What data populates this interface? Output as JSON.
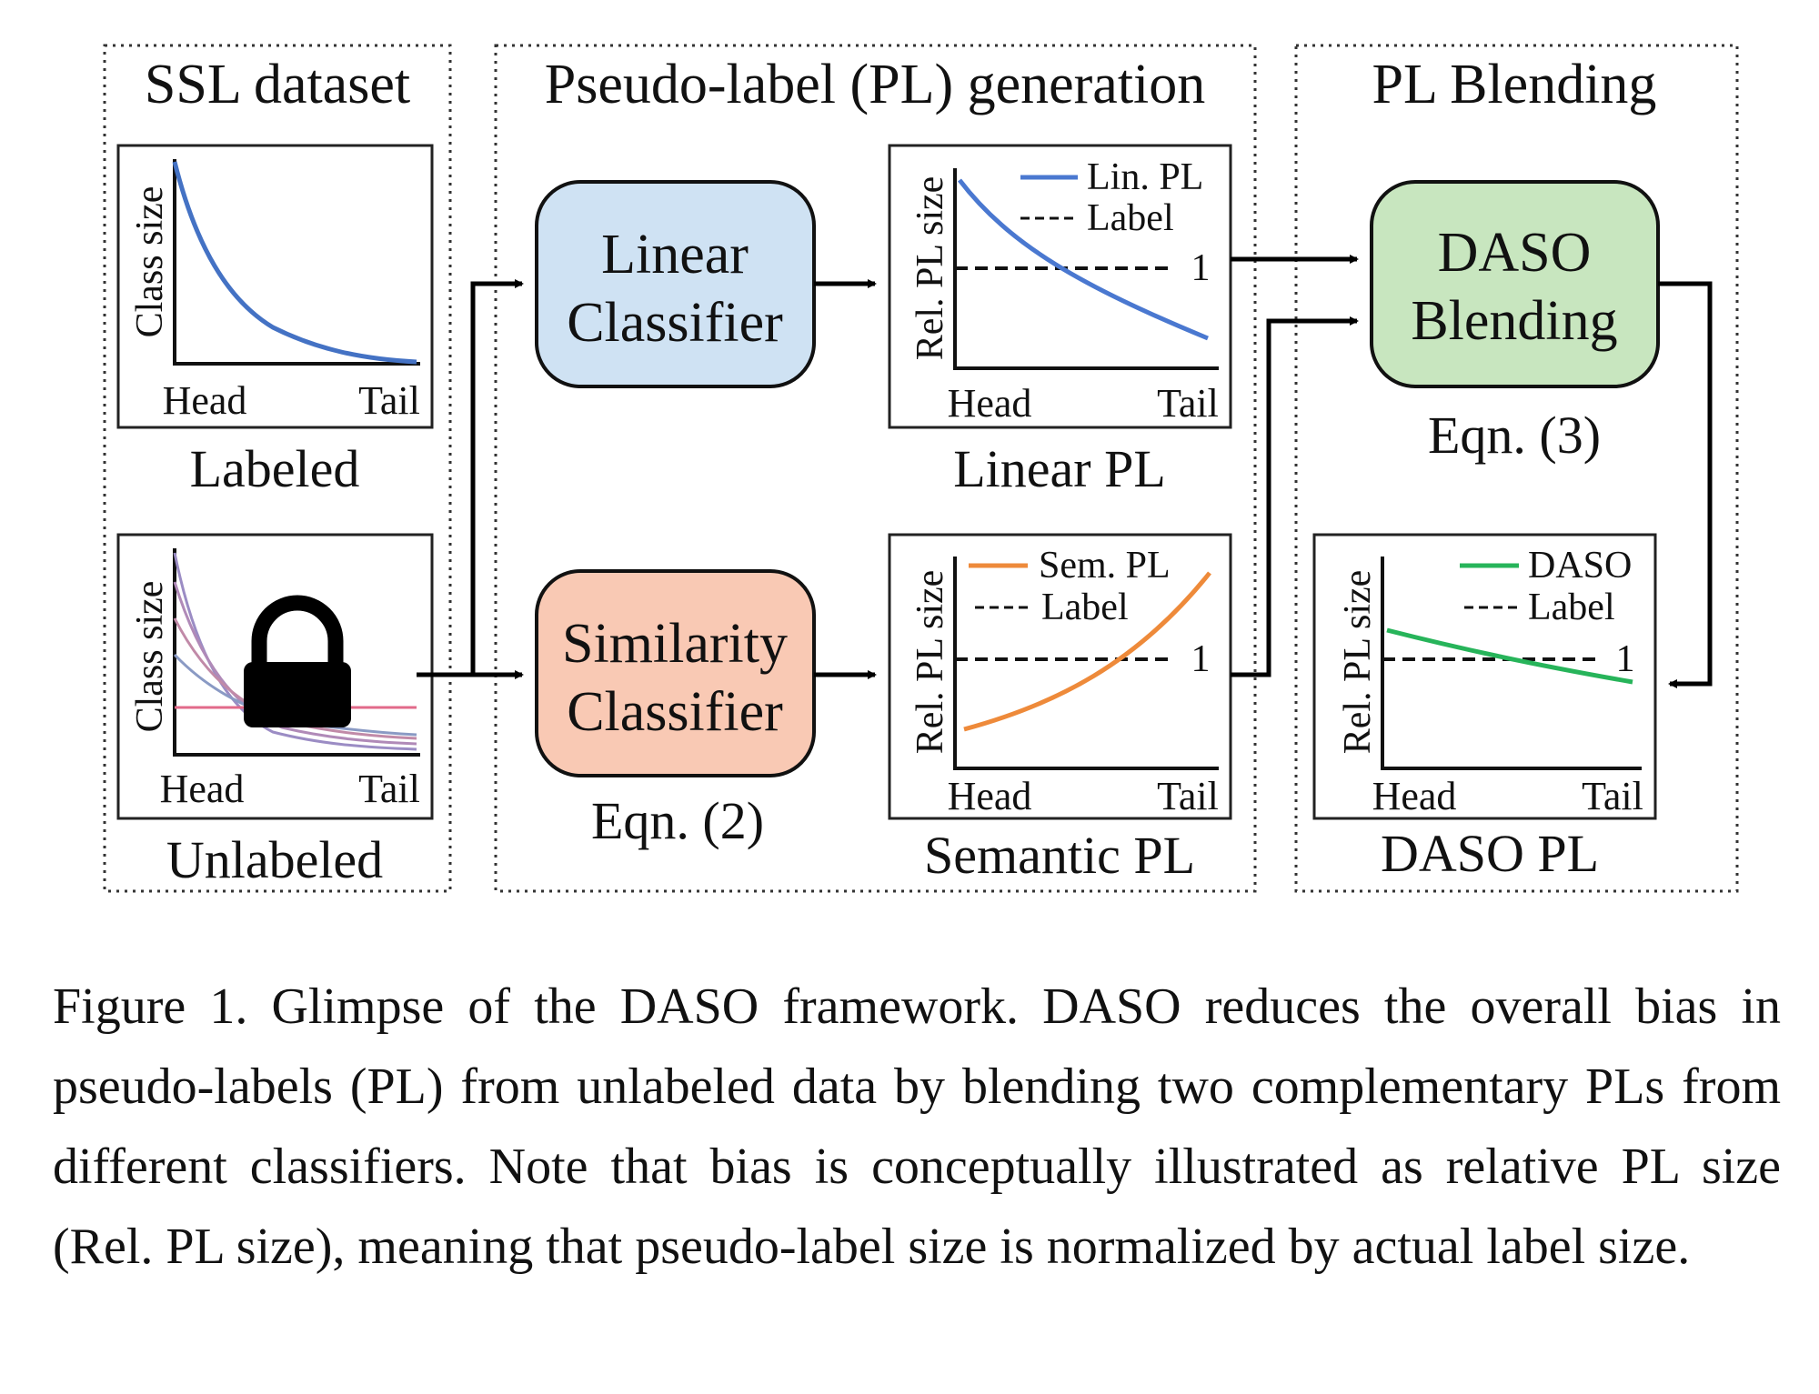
{
  "sections": {
    "ssl_dataset": "SSL dataset",
    "pl_generation": "Pseudo-label (PL) generation",
    "pl_blending": "PL Blending"
  },
  "plots": {
    "labeled": {
      "ylabel": "Class size",
      "x_head": "Head",
      "x_tail": "Tail",
      "caption": "Labeled",
      "color": "#4472c4"
    },
    "unlabeled": {
      "ylabel": "Class size",
      "x_head": "Head",
      "x_tail": "Tail",
      "caption": "Unlabeled",
      "icon": "lock-icon"
    },
    "linear_pl": {
      "ylabel": "Rel. PL size",
      "x_head": "Head",
      "x_tail": "Tail",
      "caption": "Linear PL",
      "legend_line": "Lin. PL",
      "legend_dash": "Label",
      "ref_value": "1",
      "color": "#4a78d0"
    },
    "semantic_pl": {
      "ylabel": "Rel. PL size",
      "x_head": "Head",
      "x_tail": "Tail",
      "caption": "Semantic PL",
      "legend_line": "Sem. PL",
      "legend_dash": "Label",
      "ref_value": "1",
      "color": "#ee8a3a"
    },
    "daso_pl": {
      "ylabel": "Rel. PL size",
      "x_head": "Head",
      "x_tail": "Tail",
      "caption": "DASO PL",
      "legend_line": "DASO",
      "legend_dash": "Label",
      "ref_value": "1",
      "color": "#27b45a"
    }
  },
  "boxes": {
    "linear_classifier": {
      "line1": "Linear",
      "line2": "Classifier",
      "color": "#cfe2f3"
    },
    "similarity_classifier": {
      "line1": "Similarity",
      "line2": "Classifier",
      "color": "#f9c9b4",
      "eqn": "Eqn. (2)"
    },
    "daso_blending": {
      "line1": "DASO",
      "line2": "Blending",
      "color": "#c8e6bf",
      "eqn": "Eqn. (3)"
    }
  },
  "caption": "Figure 1. Glimpse of the DASO framework. DASO reduces the overall bias in pseudo-labels (PL) from unlabeled data by blending two complementary PLs from different classifiers. Note that bias is conceptually illustrated as relative PL size (Rel. PL size), meaning that pseudo-label size is normalized by actual label size."
}
